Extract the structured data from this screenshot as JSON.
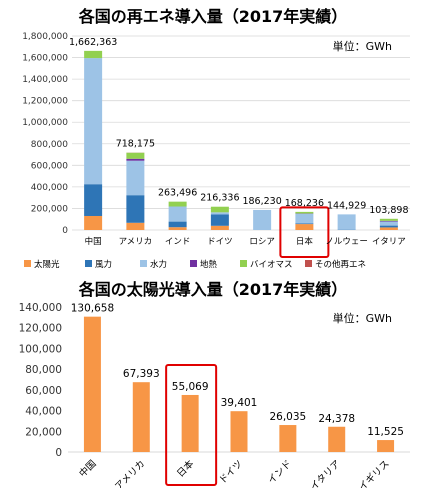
{
  "colors": {
    "solar": "#F79646",
    "wind": "#2E75B6",
    "hydro": "#9DC3E6",
    "geothermal": "#7030A0",
    "biomass": "#92D050",
    "other": "#C0504D",
    "highlight": "#E00000",
    "grid": "#D9D9D9",
    "axis_text": "#333333"
  },
  "chart_data": [
    {
      "type": "bar",
      "stacked": true,
      "title": "各国の再エネ導入量（2017年実績）",
      "unit_label": "単位：GWh",
      "ylim": [
        0,
        1800000
      ],
      "ytick_labels": [
        "0",
        "200,000",
        "400,000",
        "600,000",
        "800,000",
        "1,000,000",
        "1,200,000",
        "1,400,000",
        "1,600,000",
        "1,800,000"
      ],
      "categories": [
        "中国",
        "アメリカ",
        "インド",
        "ドイツ",
        "ロシア",
        "日本",
        "ノルウェー",
        "イタリア"
      ],
      "totals": [
        1662363,
        718175,
        263496,
        216336,
        186230,
        168236,
        144929,
        103898
      ],
      "total_labels": [
        "1,662,363",
        "718,175",
        "263,496",
        "216,336",
        "186,230",
        "168,236",
        "144,929",
        "103,898"
      ],
      "highlight_category": "日本",
      "legend_position": "bottom",
      "series": [
        {
          "name": "太陽光",
          "color_key": "solar",
          "values": [
            130000,
            67000,
            26000,
            39000,
            0,
            55000,
            0,
            24000
          ]
        },
        {
          "name": "風力",
          "color_key": "wind",
          "values": [
            295000,
            256000,
            52000,
            105000,
            0,
            6000,
            3000,
            17000
          ]
        },
        {
          "name": "水力",
          "color_key": "hydro",
          "values": [
            1170000,
            320000,
            140000,
            20000,
            186000,
            90000,
            142000,
            38000
          ]
        },
        {
          "name": "地熱",
          "color_key": "geothermal",
          "values": [
            0,
            18000,
            0,
            0,
            0,
            2000,
            0,
            6000
          ]
        },
        {
          "name": "バイオマス",
          "color_key": "biomass",
          "values": [
            67000,
            56000,
            45000,
            52000,
            0,
            15000,
            0,
            19000
          ]
        },
        {
          "name": "その他再エネ",
          "color_key": "other",
          "values": [
            0,
            1000,
            0,
            0,
            0,
            0,
            0,
            0
          ]
        }
      ]
    },
    {
      "type": "bar",
      "title": "各国の太陽光導入量（2017年実績）",
      "unit_label": "単位：GWh",
      "ylim": [
        0,
        140000
      ],
      "ytick_labels": [
        "0",
        "20,000",
        "40,000",
        "60,000",
        "80,000",
        "100,000",
        "120,000",
        "140,000"
      ],
      "categories": [
        "中国",
        "アメリカ",
        "日本",
        "ドイツ",
        "インド",
        "イタリア",
        "イギリス"
      ],
      "values": [
        130658,
        67393,
        55069,
        39401,
        26035,
        24378,
        11525
      ],
      "value_labels": [
        "130,658",
        "67,393",
        "55,069",
        "39,401",
        "26,035",
        "24,378",
        "11,525"
      ],
      "bar_color_key": "solar",
      "highlight_category": "日本"
    }
  ]
}
